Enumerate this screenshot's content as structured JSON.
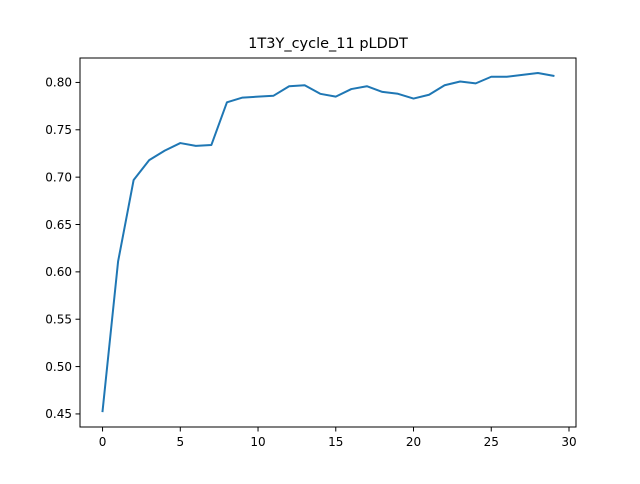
{
  "chart_data": {
    "type": "line",
    "title": "1T3Y_cycle_11 pLDDT",
    "xlabel": "",
    "ylabel": "",
    "xlim": [
      -1.45,
      30.45
    ],
    "ylim": [
      0.4362,
      0.8258
    ],
    "xticks": [
      0,
      5,
      10,
      15,
      20,
      25,
      30
    ],
    "yticks": [
      0.45,
      0.5,
      0.55,
      0.6,
      0.65,
      0.7,
      0.75,
      0.8
    ],
    "grid": false,
    "legend": "none",
    "series": [
      {
        "color": "#1f77b4",
        "x": [
          0,
          1,
          2,
          3,
          4,
          5,
          6,
          7,
          8,
          9,
          10,
          11,
          12,
          13,
          14,
          15,
          16,
          17,
          18,
          19,
          20,
          21,
          22,
          23,
          24,
          25,
          26,
          27,
          28,
          29
        ],
        "values": [
          0.453,
          0.611,
          0.697,
          0.718,
          0.728,
          0.736,
          0.733,
          0.734,
          0.779,
          0.784,
          0.785,
          0.786,
          0.796,
          0.797,
          0.788,
          0.785,
          0.793,
          0.796,
          0.79,
          0.788,
          0.783,
          0.787,
          0.797,
          0.801,
          0.799,
          0.806,
          0.806,
          0.808,
          0.81,
          0.807
        ]
      }
    ]
  }
}
